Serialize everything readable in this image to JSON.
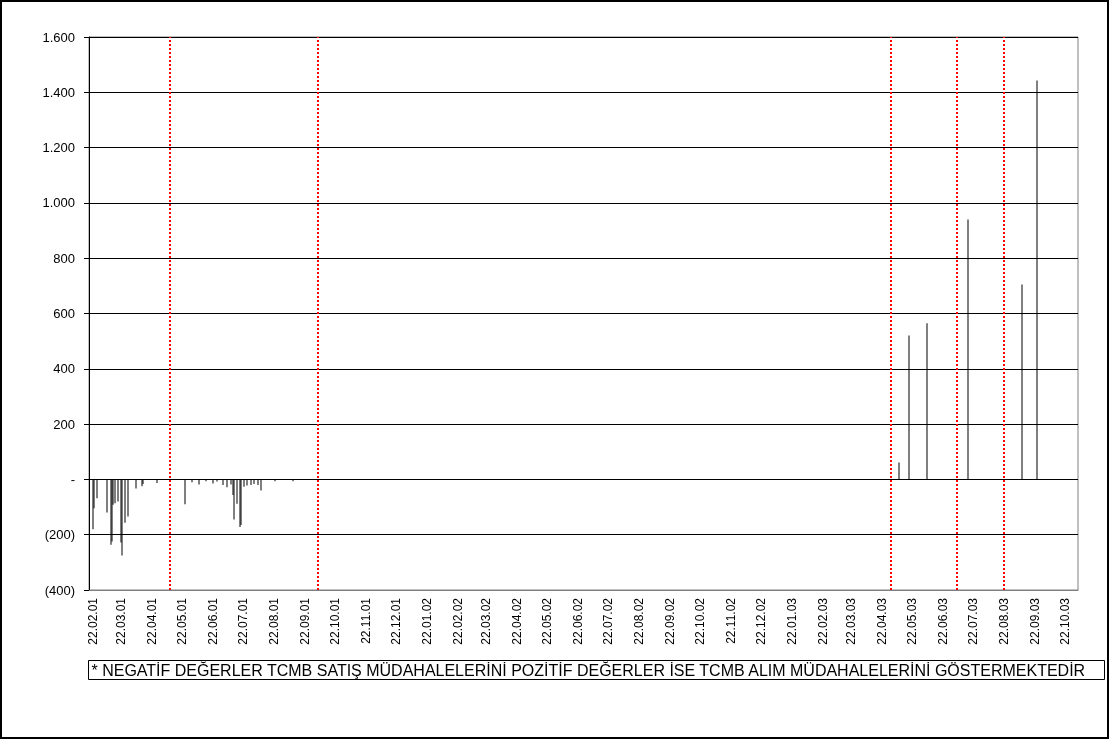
{
  "chart_data": {
    "type": "bar",
    "x": [
      "2001-02-22",
      "2001-02-23",
      "2001-02-26",
      "2001-03-08",
      "2001-03-12",
      "2001-03-13",
      "2001-03-14",
      "2001-03-16",
      "2001-03-19",
      "2001-03-22",
      "2001-03-23",
      "2001-03-26",
      "2001-03-29",
      "2001-04-06",
      "2001-04-12",
      "2001-04-13",
      "2001-04-27",
      "2001-05-25",
      "2001-06-01",
      "2001-06-08",
      "2001-06-15",
      "2001-06-22",
      "2001-06-26",
      "2001-07-02",
      "2001-07-06",
      "2001-07-10",
      "2001-07-12",
      "2001-07-13",
      "2001-07-16",
      "2001-07-19",
      "2001-07-20",
      "2001-07-23",
      "2001-07-26",
      "2001-07-30",
      "2001-08-02",
      "2001-08-06",
      "2001-08-09",
      "2001-08-23",
      "2001-09-10",
      "2003-05-09",
      "2003-05-19",
      "2003-06-06",
      "2003-07-17",
      "2003-09-09",
      "2003-09-24"
    ],
    "values": [
      -180,
      -104,
      -68,
      -120,
      -236,
      -225,
      -92,
      -86,
      -80,
      -228,
      -275,
      -157,
      -134,
      -33,
      -25,
      -17,
      -13,
      -90,
      -10,
      -18,
      -7,
      -15,
      -8,
      -20,
      -28,
      -18,
      -56,
      -145,
      -88,
      -172,
      -165,
      -27,
      -22,
      -20,
      -17,
      -20,
      -40,
      -7,
      -7,
      61,
      520,
      565,
      940,
      705,
      1443
    ],
    "color": "#000000",
    "xlim": [
      "2001-02-18",
      "2003-11-04"
    ],
    "xticks": [
      {
        "value": "2001-02-22",
        "label": "22.02.01"
      },
      {
        "value": "2001-03-22",
        "label": "22.03.01"
      },
      {
        "value": "2001-04-22",
        "label": "22.04.01"
      },
      {
        "value": "2001-05-22",
        "label": "22.05.01"
      },
      {
        "value": "2001-06-22",
        "label": "22.06.01"
      },
      {
        "value": "2001-07-22",
        "label": "22.07.01"
      },
      {
        "value": "2001-08-22",
        "label": "22.08.01"
      },
      {
        "value": "2001-09-22",
        "label": "22.09.01"
      },
      {
        "value": "2001-10-22",
        "label": "22.10.01"
      },
      {
        "value": "2001-11-22",
        "label": "22.11.01"
      },
      {
        "value": "2001-12-22",
        "label": "22.12.01"
      },
      {
        "value": "2002-01-22",
        "label": "22.01.02"
      },
      {
        "value": "2002-02-22",
        "label": "22.02.02"
      },
      {
        "value": "2002-03-22",
        "label": "22.03.02"
      },
      {
        "value": "2002-04-22",
        "label": "22.04.02"
      },
      {
        "value": "2002-05-22",
        "label": "22.05.02"
      },
      {
        "value": "2002-06-22",
        "label": "22.06.02"
      },
      {
        "value": "2002-07-22",
        "label": "22.07.02"
      },
      {
        "value": "2002-08-22",
        "label": "22.08.02"
      },
      {
        "value": "2002-09-22",
        "label": "22.09.02"
      },
      {
        "value": "2002-10-22",
        "label": "22.10.02"
      },
      {
        "value": "2002-11-22",
        "label": "22.11.02"
      },
      {
        "value": "2002-12-22",
        "label": "22.12.02"
      },
      {
        "value": "2003-01-22",
        "label": "22.01.03"
      },
      {
        "value": "2003-02-22",
        "label": "22.02.03"
      },
      {
        "value": "2003-03-22",
        "label": "22.03.03"
      },
      {
        "value": "2003-04-22",
        "label": "22.04.03"
      },
      {
        "value": "2003-05-22",
        "label": "22.05.03"
      },
      {
        "value": "2003-06-22",
        "label": "22.06.03"
      },
      {
        "value": "2003-07-22",
        "label": "22.07.03"
      },
      {
        "value": "2003-08-22",
        "label": "22.08.03"
      },
      {
        "value": "2003-09-22",
        "label": "22.09.03"
      },
      {
        "value": "2003-10-22",
        "label": "22.10.03"
      }
    ],
    "ylim": [
      -400,
      1600
    ],
    "yticks": [
      {
        "value": -400,
        "label": "(400)"
      },
      {
        "value": -200,
        "label": "(200)"
      },
      {
        "value": 0,
        "label": "-"
      },
      {
        "value": 200,
        "label": "200"
      },
      {
        "value": 400,
        "label": "400"
      },
      {
        "value": 600,
        "label": "600"
      },
      {
        "value": 800,
        "label": "800"
      },
      {
        "value": 1000,
        "label": "1.000"
      },
      {
        "value": 1200,
        "label": "1.200"
      },
      {
        "value": 1400,
        "label": "1.400"
      },
      {
        "value": 1600,
        "label": "1.600"
      }
    ],
    "grid": "y",
    "ref_lines": [
      {
        "axis": "x",
        "value": "2001-05-10",
        "color": "#ff0000",
        "line_style": "dotted"
      },
      {
        "axis": "x",
        "value": "2001-10-05",
        "color": "#ff0000",
        "line_style": "dotted"
      },
      {
        "axis": "x",
        "value": "2003-05-01",
        "color": "#ff0000",
        "line_style": "dotted"
      },
      {
        "axis": "x",
        "value": "2003-07-06",
        "color": "#ff0000",
        "line_style": "dotted"
      },
      {
        "axis": "x",
        "value": "2003-08-22",
        "color": "#ff0000",
        "line_style": "dotted"
      }
    ],
    "annotations": [
      "* NEGATİF DEĞERLER TCMB SATIŞ MÜDAHALELERİNİ POZİTİF DEĞERLER İSE TCMB ALIM MÜDAHALELERİNİ GÖSTERMEKTEDİR"
    ]
  }
}
